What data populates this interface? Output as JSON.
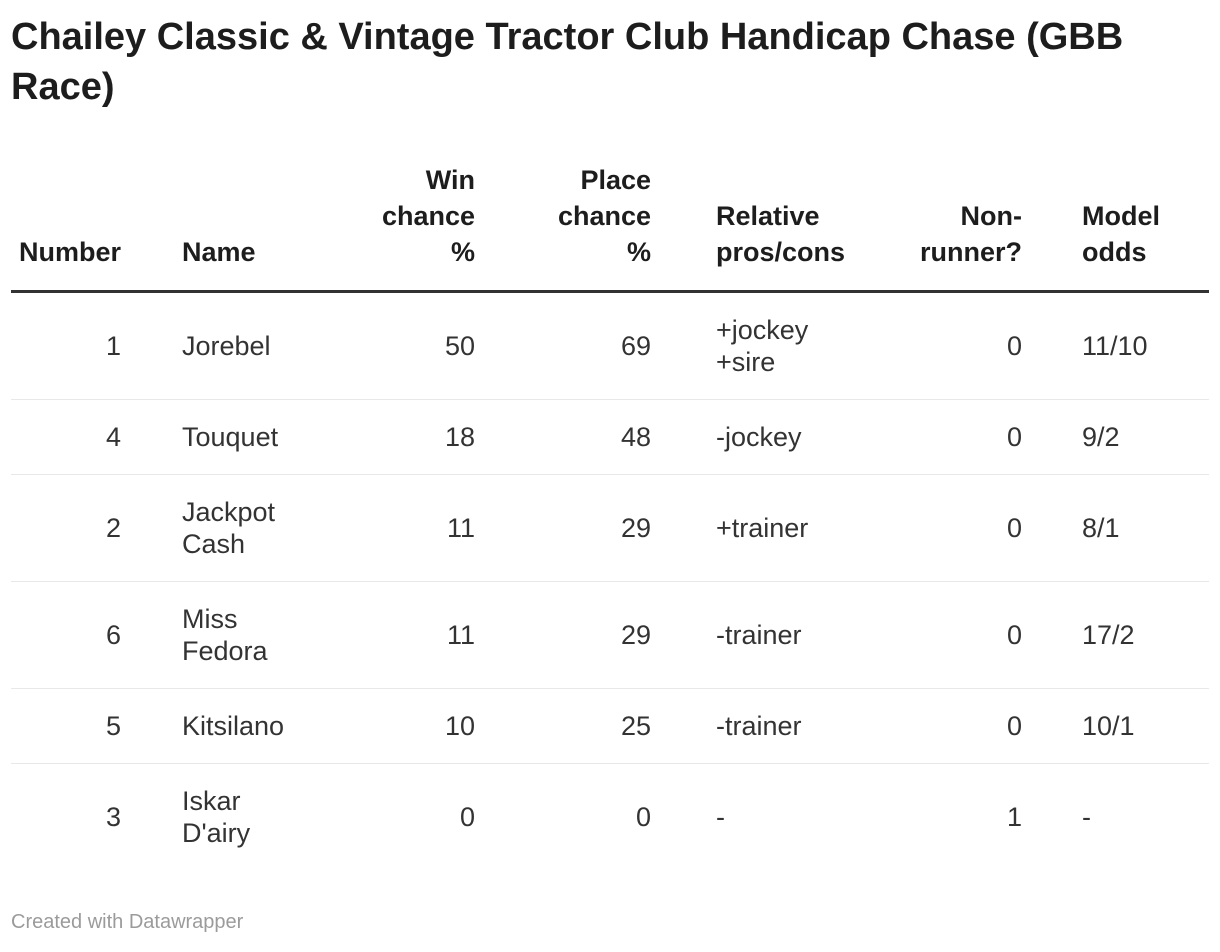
{
  "title": "Chailey Classic & Vintage Tractor Club Handicap Chase (GBB Race)",
  "chart_data": {
    "type": "table",
    "title": "Chailey Classic & Vintage Tractor Club Handicap Chase (GBB Race)",
    "columns": [
      "Number",
      "Name",
      "Win\nchance\n%",
      "Place\nchance\n%",
      "Relative\npros/cons",
      "Non-\nrunner?",
      "Model\nodds"
    ],
    "rows": [
      {
        "number": "1",
        "name": "Jorebel",
        "win": "50",
        "place": "69",
        "pros": "+jockey\n+sire",
        "nonrunner": "0",
        "odds": "11/10"
      },
      {
        "number": "4",
        "name": "Touquet",
        "win": "18",
        "place": "48",
        "pros": "-jockey",
        "nonrunner": "0",
        "odds": "9/2"
      },
      {
        "number": "2",
        "name": "Jackpot\nCash",
        "win": "11",
        "place": "29",
        "pros": "+trainer",
        "nonrunner": "0",
        "odds": "8/1"
      },
      {
        "number": "6",
        "name": "Miss\nFedora",
        "win": "11",
        "place": "29",
        "pros": "-trainer",
        "nonrunner": "0",
        "odds": "17/2"
      },
      {
        "number": "5",
        "name": "Kitsilano",
        "win": "10",
        "place": "25",
        "pros": "-trainer",
        "nonrunner": "0",
        "odds": "10/1"
      },
      {
        "number": "3",
        "name": "Iskar\nD'airy",
        "win": "0",
        "place": "0",
        "pros": "-",
        "nonrunner": "1",
        "odds": "-"
      }
    ]
  },
  "footer": {
    "credit": "Created with Datawrapper"
  },
  "colors": {
    "title_text": "#1d1d1d",
    "body_text": "#333333",
    "header_rule": "#333333",
    "row_rule": "#e8e8e8",
    "credit_text": "#9b9b9b",
    "background": "#ffffff"
  }
}
